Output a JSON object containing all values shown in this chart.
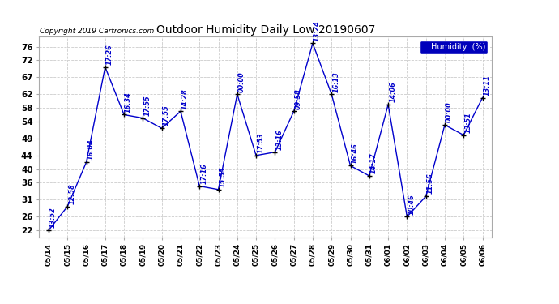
{
  "title": "Outdoor Humidity Daily Low 20190607",
  "copyright": "Copyright 2019 Cartronics.com",
  "legend_label": "Humidity  (%)",
  "background_color": "#ffffff",
  "plot_bg_color": "#ffffff",
  "line_color": "#0000cc",
  "grid_color": "#cccccc",
  "yticks": [
    22,
    26,
    31,
    36,
    40,
    44,
    49,
    54,
    58,
    62,
    67,
    72,
    76
  ],
  "x_labels": [
    "05/14",
    "05/15",
    "05/16",
    "05/17",
    "05/18",
    "05/19",
    "05/20",
    "05/21",
    "05/22",
    "05/23",
    "05/24",
    "05/25",
    "05/26",
    "05/27",
    "05/28",
    "05/29",
    "05/30",
    "05/31",
    "06/01",
    "06/02",
    "06/03",
    "06/04",
    "06/05",
    "06/06"
  ],
  "y_values": [
    22,
    29,
    42,
    70,
    56,
    55,
    52,
    57,
    35,
    34,
    62,
    44,
    45,
    57,
    77,
    62,
    41,
    38,
    59,
    26,
    32,
    53,
    50,
    61
  ],
  "annotations": [
    "13:52",
    "12:58",
    "16:04",
    "17:26",
    "16:34",
    "17:55",
    "17:55",
    "14:28",
    "17:16",
    "15:55",
    "00:00",
    "17:53",
    "13:16",
    "09:58",
    "13:24",
    "16:13",
    "16:46",
    "14:17",
    "14:06",
    "10:46",
    "11:56",
    "00:00",
    "13:51",
    "13:11"
  ]
}
